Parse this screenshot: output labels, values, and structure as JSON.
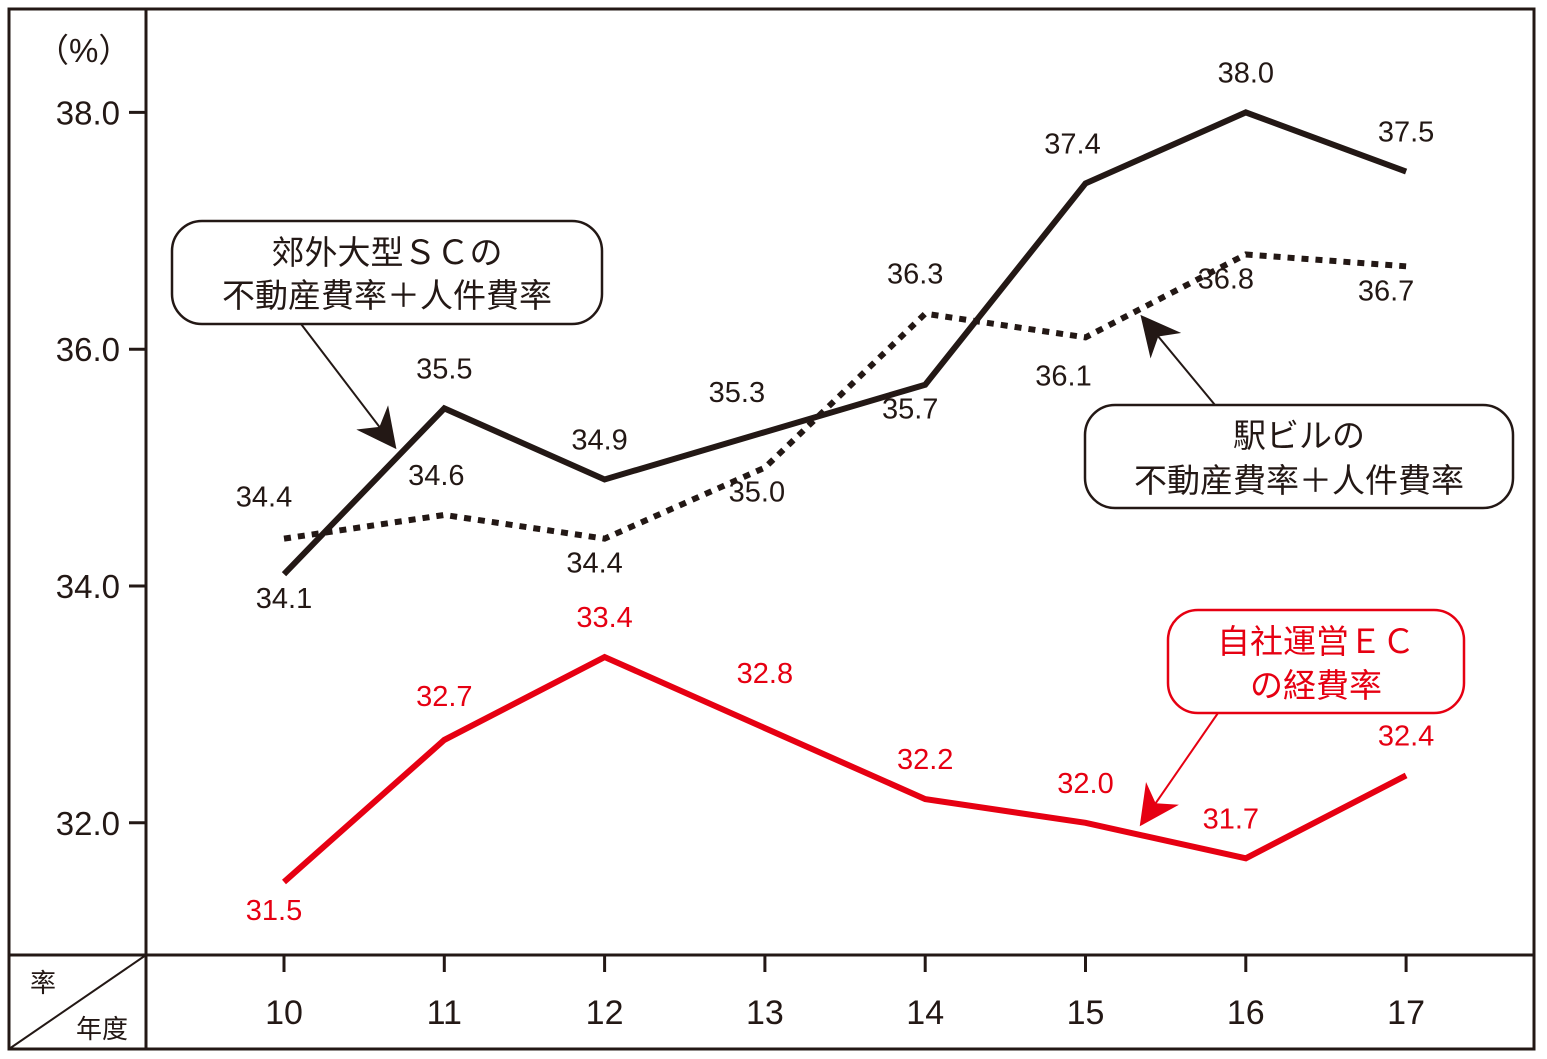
{
  "chart_data": {
    "type": "line",
    "ylabel": "（%）",
    "corner_top": "率",
    "corner_bottom": "年度",
    "categories": [
      "10",
      "11",
      "12",
      "13",
      "14",
      "15",
      "16",
      "17"
    ],
    "ylim": [
      30.8,
      38.8
    ],
    "yticks": [
      "32.0",
      "34.0",
      "36.0",
      "38.0"
    ],
    "grid": false,
    "series": [
      {
        "name": "郊外大型ＳＣの不動産費率＋人件費率",
        "name_lines": [
          "郊外大型ＳＣの",
          "不動産費率＋人件費率"
        ],
        "style": "solid",
        "color": "#231815",
        "values": [
          34.1,
          35.5,
          34.9,
          35.3,
          35.7,
          37.4,
          38.0,
          37.5
        ],
        "labels": [
          "34.1",
          "35.5",
          "34.9",
          "35.3",
          "35.7",
          "37.4",
          "38.0",
          "37.5"
        ]
      },
      {
        "name": "駅ビルの不動産費率＋人件費率",
        "name_lines": [
          "駅ビルの",
          "不動産費率＋人件費率"
        ],
        "style": "dotted",
        "color": "#231815",
        "values": [
          34.4,
          34.6,
          34.4,
          35.0,
          36.3,
          36.1,
          36.8,
          36.7
        ],
        "labels": [
          "34.4",
          "34.6",
          "34.4",
          "35.0",
          "36.3",
          "36.1",
          "36.8",
          "36.7"
        ]
      },
      {
        "name": "自社運営ＥＣの経費率",
        "name_lines": [
          "自社運営ＥＣ",
          "の経費率"
        ],
        "style": "solid",
        "color": "#e60012",
        "values": [
          31.5,
          32.7,
          33.4,
          32.8,
          32.2,
          32.0,
          31.7,
          32.4
        ],
        "labels": [
          "31.5",
          "32.7",
          "33.4",
          "32.8",
          "32.2",
          "32.0",
          "31.7",
          "32.4"
        ]
      }
    ]
  }
}
